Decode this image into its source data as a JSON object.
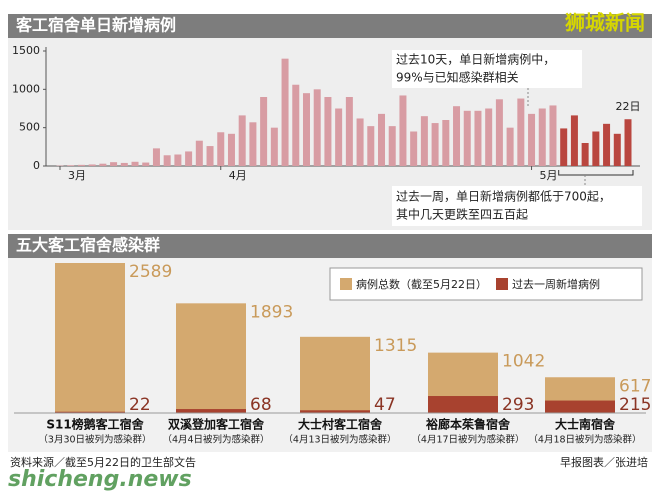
{
  "chart_data": [
    {
      "type": "bar",
      "title": "客工宿舍单日新增病例",
      "categories": [
        "3月",
        null,
        null,
        null,
        null,
        null,
        null,
        null,
        null,
        null,
        null,
        null,
        null,
        null,
        null,
        "4月",
        null,
        null,
        null,
        null,
        null,
        null,
        null,
        null,
        null,
        null,
        null,
        null,
        null,
        null,
        null,
        null,
        null,
        null,
        null,
        null,
        null,
        null,
        null,
        null,
        null,
        null,
        null,
        null,
        "5月",
        null,
        null,
        null,
        null,
        null,
        null,
        null,
        null,
        null
      ],
      "values": [
        5,
        10,
        15,
        20,
        30,
        50,
        40,
        55,
        45,
        230,
        140,
        150,
        190,
        330,
        260,
        440,
        420,
        660,
        570,
        900,
        500,
        1400,
        1060,
        950,
        1000,
        900,
        750,
        900,
        620,
        520,
        680,
        520,
        920,
        450,
        650,
        560,
        600,
        780,
        720,
        720,
        750,
        870,
        500,
        880,
        680,
        750,
        790,
        490,
        660,
        300,
        450,
        550,
        420,
        610
      ],
      "color": "#d89ca3",
      "highlight_color": "#b9463f",
      "highlight_last": 7,
      "end_label": "22日",
      "ylim": [
        0,
        1500
      ],
      "yticks": [
        0,
        500,
        1000,
        1500
      ],
      "annotations": [
        [
          "过去10天，单日新增病例中，",
          "99%与已知感染群相关"
        ],
        [
          "过去一周，单日新增病例都低于700起，",
          "其中几天更跌至四五百起"
        ]
      ]
    },
    {
      "type": "overlap-bar",
      "title": "五大客工宿舍感染群",
      "categories": [
        "S11榜鹅客工宿舍",
        "双溪登加客工宿舍",
        "大士村客工宿舍",
        "裕廊本茱鲁宿舍",
        "大士南宿舍"
      ],
      "category_notes": [
        "（3月30日被列为感染群）",
        "（4月4日被列为感染群）",
        "（4月13日被列为感染群）",
        "（4月17日被列为感染群）",
        "（4月18日被列为感染群）"
      ],
      "series": [
        {
          "name": "病例总数（截至5月22日）",
          "color": "#d4a96f",
          "values": [
            2589,
            1893,
            1315,
            1042,
            617
          ]
        },
        {
          "name": "过去一周新增病例",
          "color": "#a8422f",
          "values": [
            22,
            68,
            47,
            293,
            215
          ]
        }
      ]
    }
  ],
  "brand": "狮城新闻",
  "source": "资料来源／截至5月22日的卫生部文告",
  "credit": "早报图表／张进培",
  "watermark": "shicheng.news"
}
